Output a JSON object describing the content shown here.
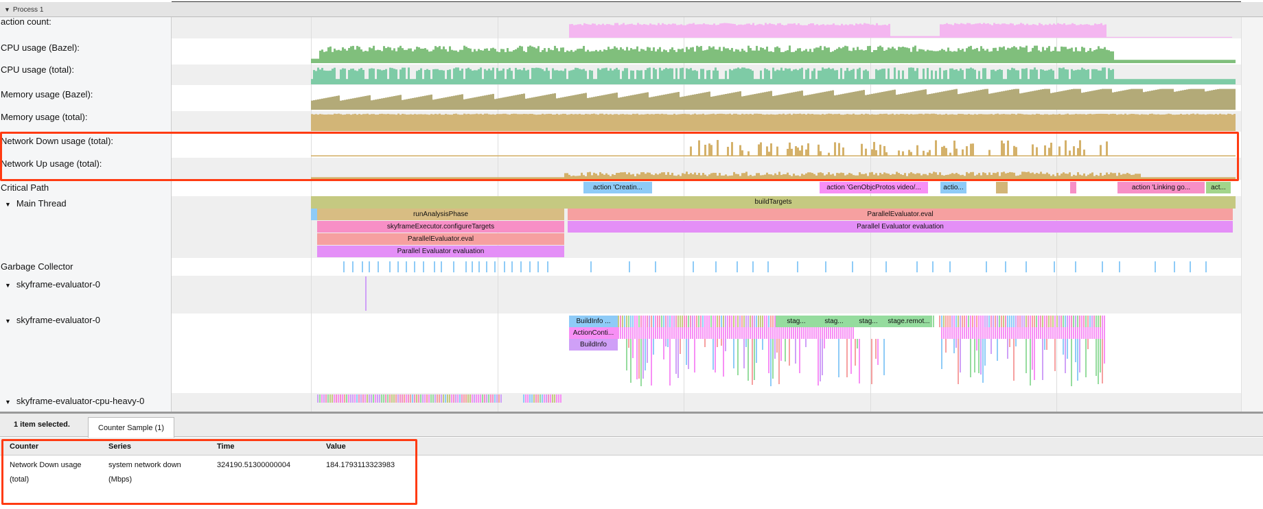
{
  "process": {
    "title": "Process 1"
  },
  "tracks": {
    "action_count": "action count:",
    "cpu_bazel": "CPU usage (Bazel):",
    "cpu_total": "CPU usage (total):",
    "mem_bazel": "Memory usage (Bazel):",
    "mem_total": "Memory usage (total):",
    "net_down": "Network Down usage (total):",
    "net_up": "Network Up usage (total):",
    "critical_path": "Critical Path",
    "main_thread": "Main Thread",
    "gc": "Garbage Collector",
    "sky0a": "skyframe-evaluator-0",
    "sky0b": "skyframe-evaluator-0",
    "cpuheavy": "skyframe-evaluator-cpu-heavy-0"
  },
  "colors": {
    "action_count": "#f4b6f0",
    "cpu_bazel": "#80bf7c",
    "cpu_total": "#7ecba6",
    "mem_bazel": "#b3aa78",
    "mem_total": "#d2b577",
    "network": "#d4b16a",
    "highlight": "#ff3b12"
  },
  "critical_path": [
    "action 'Creatin...",
    "action 'GenObjcProtos video/...",
    "actio...",
    "action 'Linking go...",
    "act..."
  ],
  "main_thread": {
    "buildTargets": "buildTargets",
    "runAnalysisPhase": "runAnalysisPhase",
    "eval_right": "ParallelEvaluator.eval",
    "configure": "skyframeExecutor.configureTargets",
    "pe_eval_right": "Parallel Evaluator evaluation",
    "eval_left": "ParallelEvaluator.eval",
    "pe_eval_left": "Parallel Evaluator evaluation"
  },
  "sky": {
    "s1": "BuildInfo ...",
    "s2": "ActionConti...",
    "s3": "BuildInfo",
    "st1": "stag...",
    "st2": "stag...",
    "st3": "stag...",
    "st4": "stage.remot..."
  },
  "details": {
    "selected": "1 item selected.",
    "tab": "Counter Sample (1)",
    "columns": [
      "Counter",
      "Series",
      "Time",
      "Value"
    ],
    "row": {
      "counter": "Network Down usage (total)",
      "series": "system network down (Mbps)",
      "time": "324190.51300000004",
      "value": "184.1793113323983"
    }
  }
}
